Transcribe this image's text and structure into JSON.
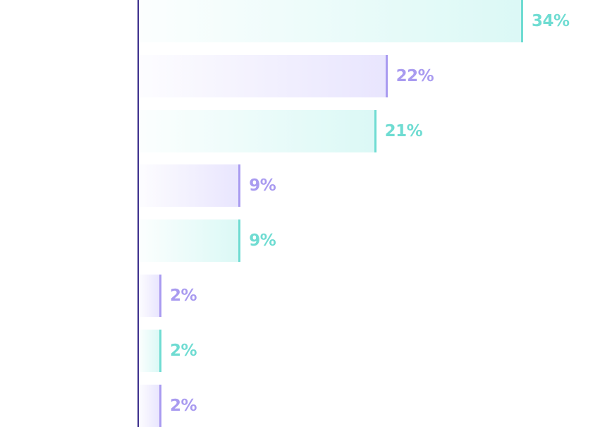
{
  "chart_data": {
    "type": "bar",
    "orientation": "horizontal",
    "categories": [
      "",
      "",
      "",
      "",
      "",
      "",
      "",
      ""
    ],
    "values": [
      34,
      22,
      21,
      9,
      9,
      2,
      2,
      2
    ],
    "value_labels": [
      "34%",
      "22%",
      "21%",
      "9%",
      "9%",
      "2%",
      "2%",
      "2%"
    ],
    "unit": "%",
    "title": "",
    "xlabel": "",
    "ylabel": "",
    "xlim": [
      0,
      34
    ],
    "grid": false,
    "colors": [
      "#6fdcd2",
      "#a99bf0",
      "#6fdcd2",
      "#a99bf0",
      "#6fdcd2",
      "#a99bf0",
      "#6fdcd2",
      "#a99bf0"
    ]
  }
}
